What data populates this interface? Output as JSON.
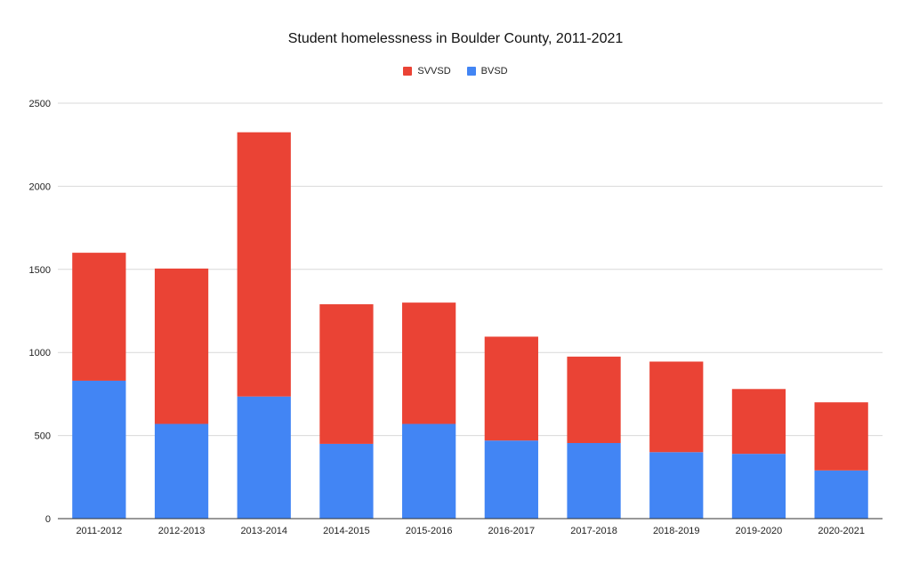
{
  "chart_data": {
    "type": "bar",
    "stacked": true,
    "title": "Student homelessness in Boulder County, 2011-2021",
    "xlabel": "",
    "ylabel": "",
    "ylim": [
      0,
      2500
    ],
    "yticks": [
      0,
      500,
      1000,
      1500,
      2000,
      2500
    ],
    "ytick_labels": [
      "0",
      "500",
      "1000",
      "1500",
      "2000",
      "2500"
    ],
    "categories": [
      "2011-2012",
      "2012-2013",
      "2013-2014",
      "2014-2015",
      "2015-2016",
      "2016-2017",
      "2017-2018",
      "2018-2019",
      "2019-2020",
      "2020-2021"
    ],
    "series": [
      {
        "name": "SVVSD",
        "color": "#EA4335",
        "values": [
          770,
          935,
          1590,
          840,
          730,
          625,
          520,
          545,
          390,
          410
        ]
      },
      {
        "name": "BVSD",
        "color": "#4285F4",
        "values": [
          830,
          570,
          735,
          450,
          570,
          470,
          455,
          400,
          390,
          290
        ]
      }
    ],
    "legend_position": "top",
    "grid": true
  }
}
